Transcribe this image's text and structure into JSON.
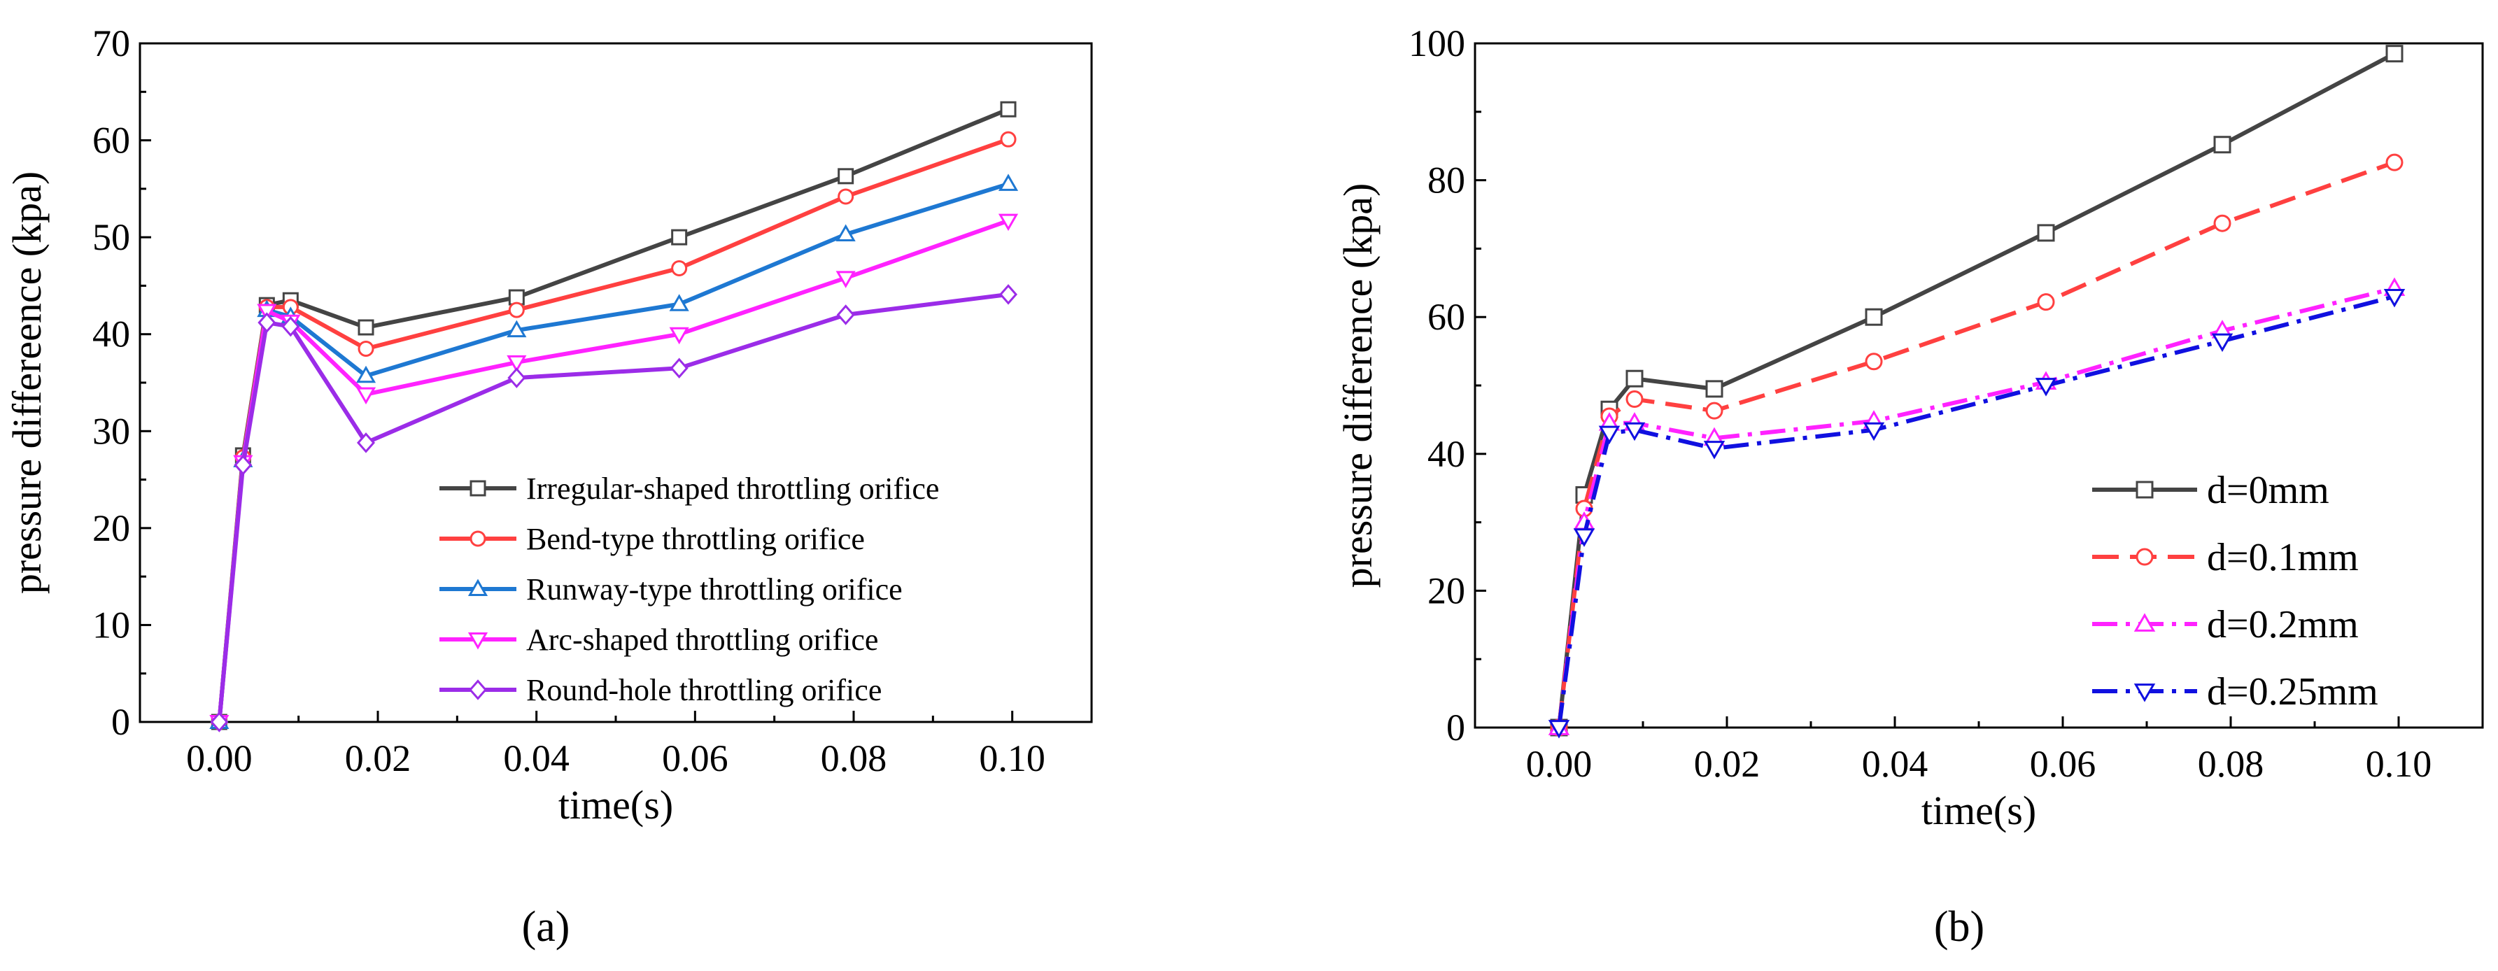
{
  "chart_data": [
    {
      "type": "line",
      "panel_label": "a",
      "xlabel": "time(s)",
      "ylabel": "pressure differeence (kpa)",
      "xlim": [
        -0.01,
        0.11
      ],
      "ylim": [
        0,
        70
      ],
      "xticks": [
        0.0,
        0.02,
        0.04,
        0.06,
        0.08,
        0.1
      ],
      "xtick_labels": [
        "0.00",
        "0.02",
        "0.04",
        "0.06",
        "0.08",
        "0.10"
      ],
      "yticks": [
        0,
        10,
        20,
        30,
        40,
        50,
        60,
        70
      ],
      "ytick_labels": [
        "0",
        "10",
        "20",
        "30",
        "40",
        "50",
        "60",
        "70"
      ],
      "legend_position": "bottom-right",
      "x": [
        0.0,
        0.003,
        0.006,
        0.009,
        0.0185,
        0.0375,
        0.058,
        0.079,
        0.0995
      ],
      "series": [
        {
          "name": "Irregular-shaped throttling orifice",
          "color": "#444444",
          "marker": "square",
          "dash": "solid",
          "values": [
            0,
            27.5,
            43.0,
            43.5,
            40.7,
            43.8,
            50.0,
            56.3,
            63.2
          ]
        },
        {
          "name": "Bend-type throttling orifice",
          "color": "#ff4040",
          "marker": "circle",
          "dash": "solid",
          "values": [
            0,
            27.3,
            42.8,
            42.8,
            38.5,
            42.5,
            46.8,
            54.2,
            60.1
          ]
        },
        {
          "name": "Runway-type throttling orifice",
          "color": "#1e78d2",
          "marker": "triangle-up",
          "dash": "solid",
          "values": [
            0,
            27.0,
            42.5,
            41.8,
            35.7,
            40.4,
            43.1,
            50.3,
            55.5
          ]
        },
        {
          "name": "Arc-shaped throttling orifice",
          "color": "#ff22ff",
          "marker": "triangle-down",
          "dash": "solid",
          "values": [
            0,
            26.8,
            42.4,
            41.3,
            33.8,
            37.1,
            40.0,
            45.8,
            51.7
          ]
        },
        {
          "name": "Round-hole throttling orifice",
          "color": "#9b2ce8",
          "marker": "diamond",
          "dash": "solid",
          "values": [
            0,
            26.5,
            41.2,
            40.8,
            28.8,
            35.5,
            36.5,
            42.0,
            44.1
          ]
        }
      ]
    },
    {
      "type": "line",
      "panel_label": "b",
      "xlabel": "time(s)",
      "ylabel": "pressure difference (kpa)",
      "xlim": [
        -0.01,
        0.11
      ],
      "ylim": [
        0,
        100
      ],
      "xticks": [
        0.0,
        0.02,
        0.04,
        0.06,
        0.08,
        0.1
      ],
      "xtick_labels": [
        "0.00",
        "0.02",
        "0.04",
        "0.06",
        "0.08",
        "0.10"
      ],
      "yticks": [
        0,
        20,
        40,
        60,
        80,
        100
      ],
      "ytick_labels": [
        "0",
        "20",
        "40",
        "60",
        "80",
        "100"
      ],
      "legend_position": "bottom-right",
      "x": [
        0.0,
        0.003,
        0.006,
        0.009,
        0.0185,
        0.0375,
        0.058,
        0.079,
        0.0995
      ],
      "series": [
        {
          "name": "d=0mm",
          "color": "#444444",
          "marker": "square",
          "dash": "solid",
          "values": [
            0,
            34.0,
            46.5,
            51.0,
            49.5,
            60.0,
            72.3,
            85.2,
            98.5
          ]
        },
        {
          "name": "d=0.1mm",
          "color": "#ff4040",
          "marker": "circle",
          "dash": "dash",
          "values": [
            0,
            32.0,
            45.5,
            48.0,
            46.3,
            53.5,
            62.2,
            73.7,
            82.6
          ]
        },
        {
          "name": "d=0.2mm",
          "color": "#ff22ff",
          "marker": "triangle-up",
          "dash": "dashdot",
          "values": [
            0,
            30.0,
            44.5,
            44.5,
            42.3,
            44.8,
            50.5,
            58.0,
            64.2
          ]
        },
        {
          "name": "d=0.25mm",
          "color": "#1010e0",
          "marker": "triangle-down",
          "dash": "dashdot",
          "values": [
            0,
            28.0,
            43.0,
            43.5,
            40.8,
            43.5,
            50.0,
            56.5,
            63.0
          ]
        }
      ]
    }
  ]
}
